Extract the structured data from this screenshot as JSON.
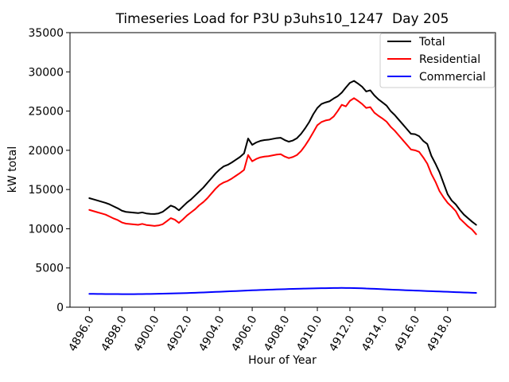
{
  "figure": {
    "background": "#ffffff"
  },
  "chart_data": {
    "type": "line",
    "title": "Timeseries Load for P3U p3uhs10_1247  Day 205",
    "xlabel": "Hour of Year",
    "ylabel": "kW total",
    "xlim": [
      4894.8125,
      4920.9375
    ],
    "ylim": [
      0,
      35000
    ],
    "yticks": [
      0,
      5000,
      10000,
      15000,
      20000,
      25000,
      30000,
      35000
    ],
    "xticks": [
      4896,
      4898,
      4900,
      4902,
      4904,
      4906,
      4908,
      4910,
      4912,
      4914,
      4916,
      4918
    ],
    "xtick_labels": [
      "4896.0",
      "4898.0",
      "4900.0",
      "4902.0",
      "4904.0",
      "4906.0",
      "4908.0",
      "4910.0",
      "4912.0",
      "4914.0",
      "4916.0",
      "4918.0"
    ],
    "legend": {
      "position": "upper right",
      "border_color": "#cccccc",
      "background": "#ffffff"
    },
    "x": [
      4896.0,
      4896.25,
      4896.5,
      4896.75,
      4897.0,
      4897.25,
      4897.5,
      4897.75,
      4898.0,
      4898.25,
      4898.5,
      4898.75,
      4899.0,
      4899.25,
      4899.5,
      4899.75,
      4900.0,
      4900.25,
      4900.5,
      4900.75,
      4901.0,
      4901.25,
      4901.5,
      4901.75,
      4902.0,
      4902.25,
      4902.5,
      4902.75,
      4903.0,
      4903.25,
      4903.5,
      4903.75,
      4904.0,
      4904.25,
      4904.5,
      4904.75,
      4905.0,
      4905.25,
      4905.5,
      4905.75,
      4906.0,
      4906.25,
      4906.5,
      4906.75,
      4907.0,
      4907.25,
      4907.5,
      4907.75,
      4908.0,
      4908.25,
      4908.5,
      4908.75,
      4909.0,
      4909.25,
      4909.5,
      4909.75,
      4910.0,
      4910.25,
      4910.5,
      4910.75,
      4911.0,
      4911.25,
      4911.5,
      4911.75,
      4912.0,
      4912.25,
      4912.5,
      4912.75,
      4913.0,
      4913.25,
      4913.5,
      4913.75,
      4914.0,
      4914.25,
      4914.5,
      4914.75,
      4915.0,
      4915.25,
      4915.5,
      4915.75,
      4916.0,
      4916.25,
      4916.5,
      4916.75,
      4917.0,
      4917.25,
      4917.5,
      4917.75,
      4918.0,
      4918.25,
      4918.5,
      4918.75,
      4919.0,
      4919.25,
      4919.5,
      4919.75
    ],
    "series": [
      {
        "name": "Total",
        "color": "#000000",
        "values": [
          13900,
          13750,
          13600,
          13450,
          13300,
          13100,
          12850,
          12600,
          12300,
          12150,
          12100,
          12050,
          12000,
          12080,
          11950,
          11900,
          11880,
          11950,
          12150,
          12550,
          12950,
          12750,
          12350,
          12850,
          13350,
          13750,
          14250,
          14750,
          15250,
          15850,
          16450,
          17050,
          17550,
          17950,
          18150,
          18450,
          18800,
          19150,
          19600,
          21500,
          20700,
          21000,
          21200,
          21300,
          21350,
          21450,
          21550,
          21600,
          21300,
          21100,
          21250,
          21550,
          22100,
          22800,
          23600,
          24600,
          25400,
          25900,
          26100,
          26250,
          26600,
          26900,
          27350,
          28000,
          28600,
          28850,
          28500,
          28100,
          27500,
          27650,
          27000,
          26500,
          26100,
          25700,
          25000,
          24500,
          23900,
          23300,
          22700,
          22100,
          22050,
          21800,
          21200,
          20800,
          19300,
          18300,
          17200,
          15800,
          14400,
          13600,
          13100,
          12400,
          11800,
          11350,
          10900,
          10500
        ]
      },
      {
        "name": "Residential",
        "color": "#ff0000",
        "values": [
          12400,
          12250,
          12100,
          11950,
          11800,
          11550,
          11300,
          11100,
          10800,
          10650,
          10600,
          10550,
          10500,
          10620,
          10480,
          10420,
          10360,
          10420,
          10570,
          10950,
          11350,
          11150,
          10750,
          11200,
          11700,
          12100,
          12500,
          13000,
          13400,
          13900,
          14500,
          15100,
          15600,
          15900,
          16100,
          16400,
          16750,
          17100,
          17500,
          19400,
          18600,
          18900,
          19100,
          19200,
          19250,
          19350,
          19450,
          19500,
          19200,
          19000,
          19150,
          19400,
          19900,
          20600,
          21400,
          22300,
          23200,
          23600,
          23800,
          23900,
          24300,
          25000,
          25800,
          25600,
          26300,
          26650,
          26300,
          25900,
          25400,
          25500,
          24800,
          24400,
          24050,
          23650,
          23000,
          22500,
          21900,
          21300,
          20700,
          20100,
          20000,
          19800,
          19100,
          18300,
          17000,
          16000,
          14800,
          14000,
          13300,
          12800,
          12250,
          11300,
          10800,
          10300,
          9900,
          9300
        ]
      },
      {
        "name": "Commercial",
        "color": "#0000ff",
        "values": [
          1700,
          1695,
          1690,
          1685,
          1680,
          1675,
          1670,
          1668,
          1665,
          1662,
          1660,
          1662,
          1668,
          1675,
          1682,
          1690,
          1700,
          1710,
          1722,
          1733,
          1745,
          1758,
          1770,
          1785,
          1800,
          1820,
          1840,
          1860,
          1880,
          1903,
          1925,
          1948,
          1970,
          1993,
          2015,
          2038,
          2060,
          2083,
          2105,
          2128,
          2150,
          2170,
          2190,
          2210,
          2230,
          2248,
          2265,
          2283,
          2300,
          2315,
          2330,
          2345,
          2360,
          2373,
          2385,
          2398,
          2410,
          2418,
          2425,
          2433,
          2450,
          2452,
          2455,
          2450,
          2445,
          2435,
          2425,
          2412,
          2380,
          2360,
          2340,
          2315,
          2290,
          2268,
          2245,
          2223,
          2200,
          2180,
          2160,
          2140,
          2120,
          2100,
          2080,
          2060,
          2040,
          2020,
          2000,
          1980,
          1960,
          1940,
          1920,
          1900,
          1880,
          1860,
          1840,
          1820
        ]
      }
    ]
  }
}
